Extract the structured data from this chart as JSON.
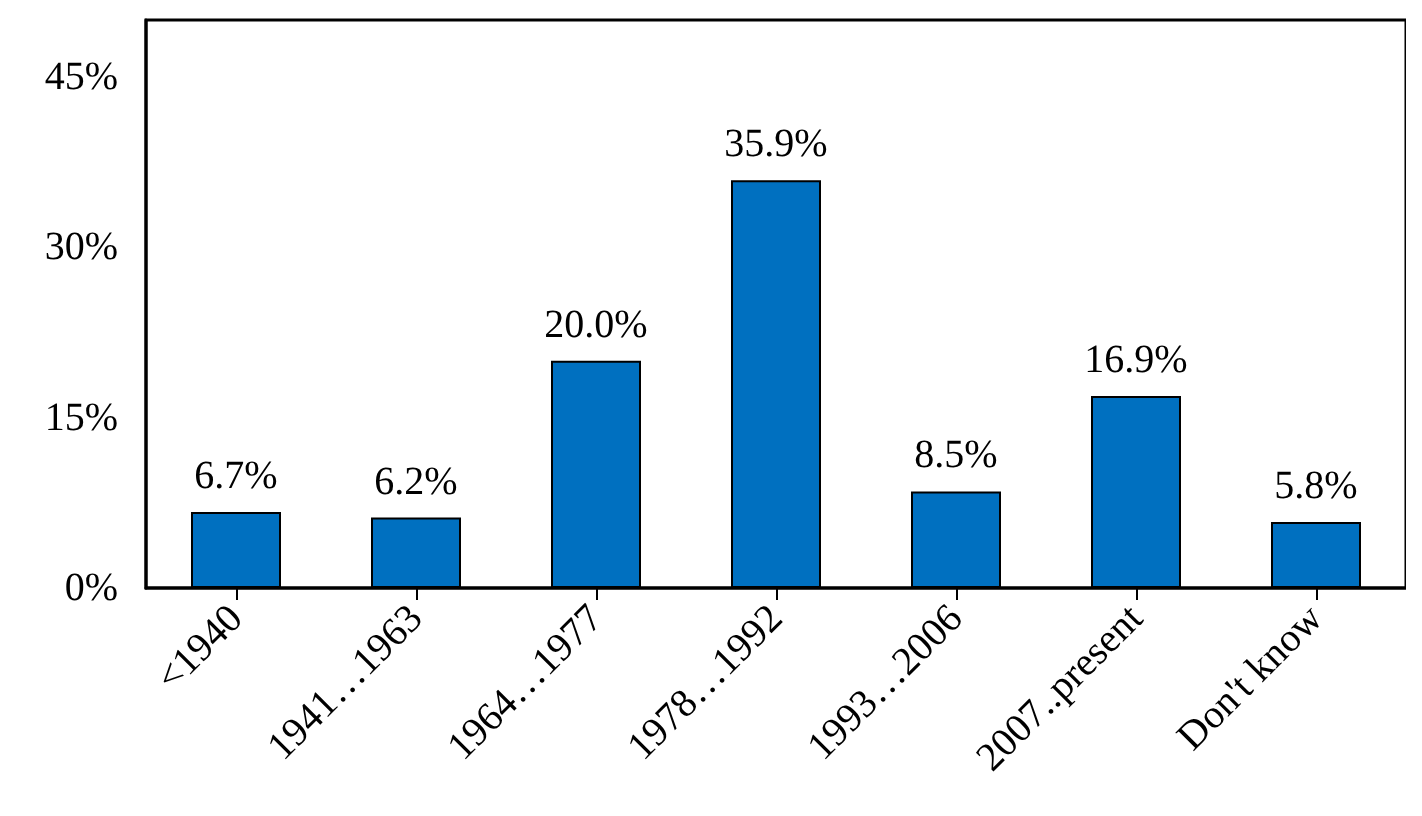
{
  "chart_data": {
    "type": "bar",
    "categories": [
      "<1940",
      "1941…1963",
      "1964…1977",
      "1978…1992",
      "1993…2006",
      "2007..present",
      "Don't know"
    ],
    "values": [
      6.7,
      6.2,
      20.0,
      35.9,
      8.5,
      16.9,
      5.8
    ],
    "value_labels": [
      "6.7%",
      "6.2%",
      "20.0%",
      "35.9%",
      "8.5%",
      "16.9%",
      "5.8%"
    ],
    "color": "#0070c0",
    "ylim": [
      0,
      50
    ],
    "yticks": [
      {
        "value": 0,
        "label": "0%"
      },
      {
        "value": 15,
        "label": "15%"
      },
      {
        "value": 30,
        "label": "30%"
      },
      {
        "value": 45,
        "label": "45%"
      }
    ],
    "grid": false
  }
}
